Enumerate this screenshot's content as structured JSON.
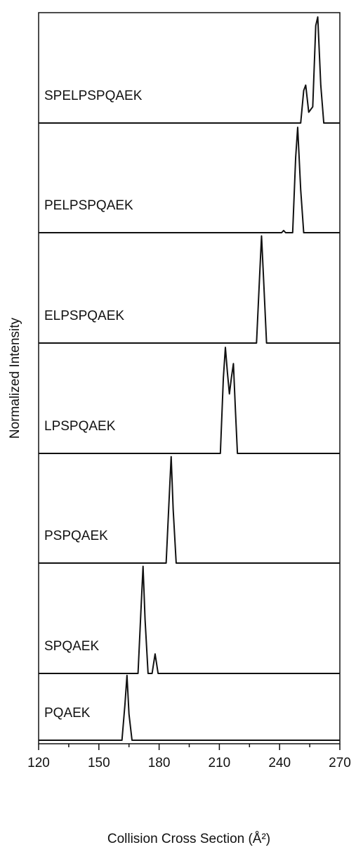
{
  "chart_data": {
    "type": "line",
    "xlabel": "Collision Cross Section (Å²)",
    "ylabel": "Normalized Intensity",
    "xlim": [
      120,
      270
    ],
    "xticks": [
      120,
      150,
      180,
      210,
      240,
      270
    ],
    "xminor_ticks": [
      135,
      165,
      195,
      225,
      255
    ],
    "ylim": [
      0,
      1.02
    ],
    "color": "#111111",
    "series": [
      {
        "name": "SPELPSPQAEK",
        "x": [
          120,
          250.5,
          252,
          253,
          254.5,
          256.5,
          258,
          259,
          260.5,
          262,
          270
        ],
        "values": [
          0,
          0,
          0.3,
          0.35,
          0.1,
          0.15,
          0.9,
          0.98,
          0.35,
          0,
          0
        ]
      },
      {
        "name": "PELPSPQAEK",
        "x": [
          120,
          241,
          242,
          243,
          246.5,
          248,
          249,
          250.5,
          252,
          270
        ],
        "values": [
          0,
          0,
          0.02,
          0,
          0,
          0.7,
          0.98,
          0.4,
          0,
          0
        ]
      },
      {
        "name": "ELPSPQAEK",
        "x": [
          120,
          228.5,
          230,
          231,
          232,
          233.5,
          270
        ],
        "values": [
          0,
          0,
          0.6,
          0.99,
          0.6,
          0,
          0
        ]
      },
      {
        "name": "LPSPQAEK",
        "x": [
          120,
          210.5,
          212,
          213,
          214,
          215,
          216,
          217,
          218,
          219,
          270
        ],
        "values": [
          0,
          0,
          0.7,
          0.98,
          0.75,
          0.55,
          0.7,
          0.83,
          0.4,
          0,
          0
        ]
      },
      {
        "name": "PSPQAEK",
        "x": [
          120,
          183.5,
          185,
          186,
          187,
          188.5,
          270
        ],
        "values": [
          0,
          0,
          0.6,
          0.99,
          0.5,
          0,
          0
        ]
      },
      {
        "name": "SPQAEK",
        "x": [
          120,
          169.5,
          171,
          172,
          173,
          174.5,
          176.5,
          178,
          179.5,
          270
        ],
        "values": [
          0,
          0,
          0.6,
          0.99,
          0.5,
          0,
          0,
          0.18,
          0,
          0
        ]
      },
      {
        "name": "PQAEK",
        "x": [
          120,
          161.5,
          163,
          164,
          165,
          166.5,
          270
        ],
        "values": [
          0,
          0,
          0.55,
          0.99,
          0.4,
          0,
          0
        ]
      }
    ]
  }
}
